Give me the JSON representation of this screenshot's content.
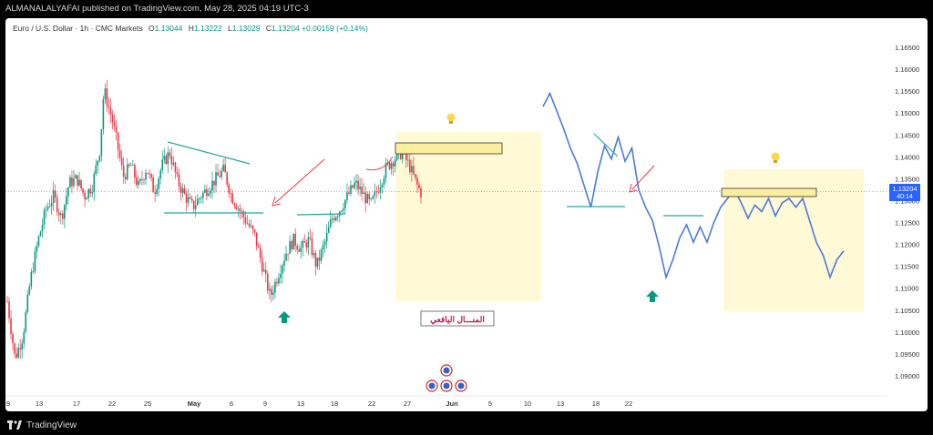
{
  "header": {
    "published": "ALMANALALYAFAI published on TradingView.com, May 28, 2025 04:19 UTC-3"
  },
  "legend": {
    "symbol": "Euro / U.S. Dollar · 1h · CMC Markets",
    "open_label": "O",
    "open": "1.13044",
    "high_label": "H",
    "high": "1.13222",
    "low_label": "L",
    "low": "1.13029",
    "close_label": "C",
    "close": "1.13204",
    "change": "+0.00159 (+0.14%)"
  },
  "price_tag": {
    "price": "1.13204",
    "countdown": "40:14"
  },
  "annotation_label": "المنـــال اليافعي",
  "footer": {
    "brand": "TradingView"
  },
  "colors": {
    "up": "#089981",
    "down": "#f23645",
    "projection": "#4a7bdc",
    "trendline": "#26a69a",
    "arrow_red": "#f23645",
    "zone": "#fff9d6",
    "box": "#fbee9c"
  },
  "chart_data": {
    "type": "candlestick",
    "title": "",
    "y_ticks": [
      "1.16500",
      "1.16000",
      "1.15500",
      "1.15000",
      "1.14500",
      "1.14000",
      "1.13500",
      "1.13000",
      "1.12500",
      "1.12000",
      "1.11500",
      "1.11000",
      "1.10500",
      "1.10000",
      "1.09500",
      "1.09000"
    ],
    "ylim": [
      1.0875,
      1.1675
    ],
    "x_ticks": [
      "9",
      "13",
      "17",
      "22",
      "25",
      "May",
      "6",
      "9",
      "13",
      "18",
      "22",
      "27",
      "Jun",
      "5",
      "10",
      "13",
      "18",
      "22"
    ],
    "current_price": 1.13204,
    "actual_price_path": [
      {
        "x": 0,
        "y": 1.107
      },
      {
        "x": 2,
        "y": 1.094
      },
      {
        "x": 4,
        "y": 1.099
      },
      {
        "x": 6,
        "y": 1.112
      },
      {
        "x": 8,
        "y": 1.121
      },
      {
        "x": 10,
        "y": 1.128
      },
      {
        "x": 12,
        "y": 1.131
      },
      {
        "x": 14,
        "y": 1.126
      },
      {
        "x": 16,
        "y": 1.134
      },
      {
        "x": 18,
        "y": 1.135
      },
      {
        "x": 20,
        "y": 1.131
      },
      {
        "x": 22,
        "y": 1.1335
      },
      {
        "x": 24,
        "y": 1.142
      },
      {
        "x": 25,
        "y": 1.1555
      },
      {
        "x": 26,
        "y": 1.152
      },
      {
        "x": 27,
        "y": 1.149
      },
      {
        "x": 28,
        "y": 1.145
      },
      {
        "x": 30,
        "y": 1.1355
      },
      {
        "x": 32,
        "y": 1.138
      },
      {
        "x": 34,
        "y": 1.133
      },
      {
        "x": 36,
        "y": 1.1375
      },
      {
        "x": 38,
        "y": 1.132
      },
      {
        "x": 40,
        "y": 1.138
      },
      {
        "x": 42,
        "y": 1.141
      },
      {
        "x": 44,
        "y": 1.1345
      },
      {
        "x": 46,
        "y": 1.131
      },
      {
        "x": 48,
        "y": 1.1285
      },
      {
        "x": 50,
        "y": 1.131
      },
      {
        "x": 52,
        "y": 1.133
      },
      {
        "x": 54,
        "y": 1.135
      },
      {
        "x": 56,
        "y": 1.137
      },
      {
        "x": 58,
        "y": 1.131
      },
      {
        "x": 60,
        "y": 1.128
      },
      {
        "x": 62,
        "y": 1.125
      },
      {
        "x": 64,
        "y": 1.122
      },
      {
        "x": 66,
        "y": 1.115
      },
      {
        "x": 68,
        "y": 1.108
      },
      {
        "x": 70,
        "y": 1.113
      },
      {
        "x": 72,
        "y": 1.118
      },
      {
        "x": 74,
        "y": 1.121
      },
      {
        "x": 76,
        "y": 1.119
      },
      {
        "x": 78,
        "y": 1.121
      },
      {
        "x": 80,
        "y": 1.115
      },
      {
        "x": 82,
        "y": 1.12
      },
      {
        "x": 84,
        "y": 1.126
      },
      {
        "x": 86,
        "y": 1.128
      },
      {
        "x": 88,
        "y": 1.131
      },
      {
        "x": 90,
        "y": 1.134
      },
      {
        "x": 92,
        "y": 1.1315
      },
      {
        "x": 94,
        "y": 1.129
      },
      {
        "x": 96,
        "y": 1.133
      },
      {
        "x": 98,
        "y": 1.1375
      },
      {
        "x": 100,
        "y": 1.1395
      },
      {
        "x": 102,
        "y": 1.141
      },
      {
        "x": 104,
        "y": 1.138
      },
      {
        "x": 106,
        "y": 1.1335
      },
      {
        "x": 107,
        "y": 1.1318
      }
    ],
    "projection_path": [
      {
        "x": 0,
        "y": 1.1515
      },
      {
        "x": 2,
        "y": 1.1545
      },
      {
        "x": 4,
        "y": 1.1505
      },
      {
        "x": 6,
        "y": 1.1465
      },
      {
        "x": 8,
        "y": 1.142
      },
      {
        "x": 10,
        "y": 1.1385
      },
      {
        "x": 12,
        "y": 1.1335
      },
      {
        "x": 14,
        "y": 1.1285
      },
      {
        "x": 16,
        "y": 1.1365
      },
      {
        "x": 18,
        "y": 1.1425
      },
      {
        "x": 20,
        "y": 1.1395
      },
      {
        "x": 22,
        "y": 1.1445
      },
      {
        "x": 24,
        "y": 1.139
      },
      {
        "x": 26,
        "y": 1.142
      },
      {
        "x": 28,
        "y": 1.1325
      },
      {
        "x": 30,
        "y": 1.1285
      },
      {
        "x": 32,
        "y": 1.1255
      },
      {
        "x": 34,
        "y": 1.1195
      },
      {
        "x": 36,
        "y": 1.1125
      },
      {
        "x": 38,
        "y": 1.1165
      },
      {
        "x": 40,
        "y": 1.1215
      },
      {
        "x": 42,
        "y": 1.1245
      },
      {
        "x": 44,
        "y": 1.1205
      },
      {
        "x": 46,
        "y": 1.124
      },
      {
        "x": 48,
        "y": 1.1205
      },
      {
        "x": 50,
        "y": 1.125
      },
      {
        "x": 52,
        "y": 1.1285
      },
      {
        "x": 54,
        "y": 1.1305
      },
      {
        "x": 56,
        "y": 1.1325
      },
      {
        "x": 58,
        "y": 1.1295
      },
      {
        "x": 60,
        "y": 1.126
      },
      {
        "x": 62,
        "y": 1.129
      },
      {
        "x": 64,
        "y": 1.1275
      },
      {
        "x": 66,
        "y": 1.1305
      },
      {
        "x": 68,
        "y": 1.1265
      },
      {
        "x": 70,
        "y": 1.1295
      },
      {
        "x": 72,
        "y": 1.1305
      },
      {
        "x": 74,
        "y": 1.1285
      },
      {
        "x": 76,
        "y": 1.1305
      },
      {
        "x": 78,
        "y": 1.1255
      },
      {
        "x": 80,
        "y": 1.1205
      },
      {
        "x": 82,
        "y": 1.1175
      },
      {
        "x": 84,
        "y": 1.1125
      },
      {
        "x": 86,
        "y": 1.1165
      },
      {
        "x": 88,
        "y": 1.1185
      }
    ]
  }
}
